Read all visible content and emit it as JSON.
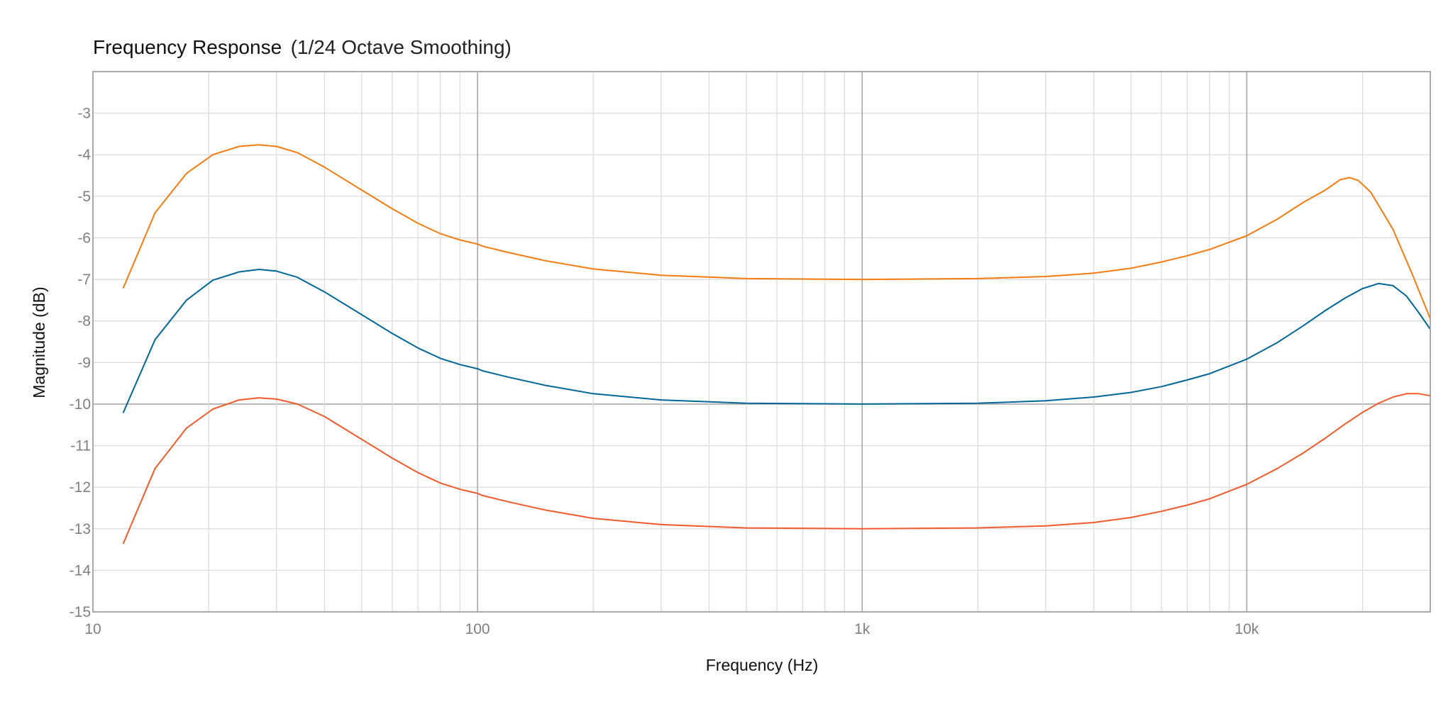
{
  "chart_data": {
    "type": "line",
    "title": "Frequency Response",
    "subtitle": "(1/24 Octave Smoothing)",
    "xlabel": "Frequency (Hz)",
    "ylabel": "Magnitude (dB)",
    "xscale": "log",
    "xlim": [
      10,
      30000
    ],
    "ylim": [
      -15,
      -2
    ],
    "grid": true,
    "legend": "none",
    "x_ticks": [
      {
        "value": 10,
        "label": "10"
      },
      {
        "value": 100,
        "label": "100"
      },
      {
        "value": 1000,
        "label": "1k"
      },
      {
        "value": 10000,
        "label": "10k"
      }
    ],
    "x_minor_ticks": [
      20,
      30,
      40,
      50,
      60,
      70,
      80,
      90,
      200,
      300,
      400,
      500,
      600,
      700,
      800,
      900,
      2000,
      3000,
      4000,
      5000,
      6000,
      7000,
      8000,
      9000,
      20000
    ],
    "y_ticks": [
      {
        "value": -3,
        "label": "-3"
      },
      {
        "value": -4,
        "label": "-4"
      },
      {
        "value": -5,
        "label": "-5"
      },
      {
        "value": -6,
        "label": "-6"
      },
      {
        "value": -7,
        "label": "-7"
      },
      {
        "value": -8,
        "label": "-8"
      },
      {
        "value": -9,
        "label": "-9"
      },
      {
        "value": -10,
        "label": "-10"
      },
      {
        "value": -11,
        "label": "-11"
      },
      {
        "value": -12,
        "label": "-12"
      },
      {
        "value": -13,
        "label": "-13"
      },
      {
        "value": -14,
        "label": "-14"
      },
      {
        "value": -15,
        "label": "-15"
      }
    ],
    "y_reference_line": -10,
    "x_reference_lines": [
      100,
      1000,
      10000
    ],
    "series": [
      {
        "name": "orange",
        "color": "#f57c10",
        "points": [
          [
            12,
            -7.2
          ],
          [
            14.5,
            -5.4
          ],
          [
            17.5,
            -4.45
          ],
          [
            20.5,
            -4.0
          ],
          [
            24,
            -3.8
          ],
          [
            27,
            -3.76
          ],
          [
            30,
            -3.8
          ],
          [
            34,
            -3.95
          ],
          [
            40,
            -4.3
          ],
          [
            50,
            -4.85
          ],
          [
            60,
            -5.3
          ],
          [
            70,
            -5.65
          ],
          [
            80,
            -5.9
          ],
          [
            90,
            -6.05
          ],
          [
            100,
            -6.15
          ],
          [
            103,
            -6.2
          ],
          [
            120,
            -6.35
          ],
          [
            150,
            -6.55
          ],
          [
            200,
            -6.75
          ],
          [
            300,
            -6.9
          ],
          [
            500,
            -6.98
          ],
          [
            1000,
            -7.0
          ],
          [
            2000,
            -6.98
          ],
          [
            3000,
            -6.93
          ],
          [
            4000,
            -6.85
          ],
          [
            5000,
            -6.73
          ],
          [
            6000,
            -6.58
          ],
          [
            7000,
            -6.43
          ],
          [
            8000,
            -6.28
          ],
          [
            10000,
            -5.95
          ],
          [
            12000,
            -5.55
          ],
          [
            14000,
            -5.15
          ],
          [
            16000,
            -4.85
          ],
          [
            17500,
            -4.6
          ],
          [
            18500,
            -4.55
          ],
          [
            19500,
            -4.62
          ],
          [
            21000,
            -4.9
          ],
          [
            24000,
            -5.8
          ],
          [
            27000,
            -6.9
          ],
          [
            30000,
            -7.95
          ]
        ]
      },
      {
        "name": "blue",
        "color": "#006699",
        "points": [
          [
            12,
            -10.2
          ],
          [
            14.5,
            -8.45
          ],
          [
            17.5,
            -7.5
          ],
          [
            20.5,
            -7.02
          ],
          [
            24,
            -6.82
          ],
          [
            27,
            -6.76
          ],
          [
            30,
            -6.8
          ],
          [
            34,
            -6.95
          ],
          [
            40,
            -7.3
          ],
          [
            50,
            -7.85
          ],
          [
            60,
            -8.3
          ],
          [
            70,
            -8.65
          ],
          [
            80,
            -8.9
          ],
          [
            90,
            -9.05
          ],
          [
            100,
            -9.15
          ],
          [
            103,
            -9.2
          ],
          [
            120,
            -9.35
          ],
          [
            150,
            -9.55
          ],
          [
            200,
            -9.75
          ],
          [
            300,
            -9.9
          ],
          [
            500,
            -9.98
          ],
          [
            1000,
            -10.0
          ],
          [
            2000,
            -9.98
          ],
          [
            3000,
            -9.92
          ],
          [
            4000,
            -9.83
          ],
          [
            5000,
            -9.72
          ],
          [
            6000,
            -9.58
          ],
          [
            7000,
            -9.42
          ],
          [
            8000,
            -9.27
          ],
          [
            10000,
            -8.92
          ],
          [
            12000,
            -8.52
          ],
          [
            14000,
            -8.12
          ],
          [
            16000,
            -7.75
          ],
          [
            18000,
            -7.45
          ],
          [
            20000,
            -7.22
          ],
          [
            22000,
            -7.1
          ],
          [
            24000,
            -7.15
          ],
          [
            26000,
            -7.4
          ],
          [
            28000,
            -7.8
          ],
          [
            30000,
            -8.2
          ]
        ]
      },
      {
        "name": "red",
        "color": "#f25a2c",
        "points": [
          [
            12,
            -13.35
          ],
          [
            14.5,
            -11.55
          ],
          [
            17.5,
            -10.58
          ],
          [
            20.5,
            -10.12
          ],
          [
            24,
            -9.9
          ],
          [
            27,
            -9.85
          ],
          [
            30,
            -9.88
          ],
          [
            34,
            -10.0
          ],
          [
            40,
            -10.3
          ],
          [
            50,
            -10.85
          ],
          [
            60,
            -11.3
          ],
          [
            70,
            -11.65
          ],
          [
            80,
            -11.9
          ],
          [
            90,
            -12.05
          ],
          [
            100,
            -12.15
          ],
          [
            103,
            -12.2
          ],
          [
            120,
            -12.35
          ],
          [
            150,
            -12.55
          ],
          [
            200,
            -12.75
          ],
          [
            300,
            -12.9
          ],
          [
            500,
            -12.98
          ],
          [
            1000,
            -13.0
          ],
          [
            2000,
            -12.98
          ],
          [
            3000,
            -12.93
          ],
          [
            4000,
            -12.85
          ],
          [
            5000,
            -12.73
          ],
          [
            6000,
            -12.58
          ],
          [
            7000,
            -12.43
          ],
          [
            8000,
            -12.28
          ],
          [
            10000,
            -11.93
          ],
          [
            12000,
            -11.55
          ],
          [
            14000,
            -11.18
          ],
          [
            16000,
            -10.82
          ],
          [
            18000,
            -10.48
          ],
          [
            20000,
            -10.2
          ],
          [
            22000,
            -9.98
          ],
          [
            24000,
            -9.83
          ],
          [
            26000,
            -9.75
          ],
          [
            28000,
            -9.75
          ],
          [
            30000,
            -9.8
          ]
        ]
      }
    ]
  }
}
